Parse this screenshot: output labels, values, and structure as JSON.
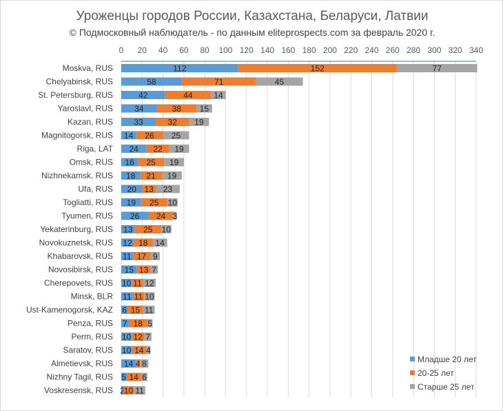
{
  "chart_data": {
    "type": "bar",
    "orientation": "horizontal",
    "stacked": true,
    "title": "Уроженцы городов России, Казахстана, Беларуси, Латвии",
    "subtitle": "© Подмосковный наблюдатель - по данным eliteprospects.com за февраль 2020 г.",
    "xlim": [
      0,
      340
    ],
    "xticks": [
      0,
      20,
      40,
      60,
      80,
      100,
      120,
      140,
      160,
      180,
      200,
      220,
      240,
      260,
      280,
      300,
      320,
      340
    ],
    "grid": true,
    "legend_position": "bottom-right",
    "categories": [
      "Moskva, RUS",
      "Chelyabinsk, RUS",
      "St. Petersburg, RUS",
      "Yaroslavl, RUS",
      "Kazan, RUS",
      "Magnitogorsk, RUS",
      "Riga, LAT",
      "Omsk, RUS",
      "Nizhnekamsk, RUS",
      "Ufa, RUS",
      "Togliatti, RUS",
      "Tyumen, RUS",
      "Yekaterinburg, RUS",
      "Novokuznetsk, RUS",
      "Khabarovsk, RUS",
      "Novosibirsk, RUS",
      "Cherepovets, RUS",
      "Minsk, BLR",
      "Ust-Kamenogorsk, KAZ",
      "Penza, RUS",
      "Perm, RUS",
      "Saratov, RUS",
      "Almetievsk, RUS",
      "Nizhny Tagil, RUS",
      "Voskresensk, RUS"
    ],
    "series": [
      {
        "name": "Младше 20 лет",
        "color": "#5b9bd5",
        "values": [
          112,
          58,
          42,
          34,
          33,
          14,
          24,
          16,
          18,
          20,
          19,
          26,
          13,
          12,
          11,
          15,
          10,
          11,
          6,
          7,
          10,
          10,
          14,
          5,
          2
        ]
      },
      {
        "name": "20-25 лет",
        "color": "#ed7d31",
        "values": [
          152,
          71,
          44,
          38,
          32,
          26,
          22,
          25,
          21,
          13,
          25,
          24,
          25,
          18,
          17,
          13,
          11,
          11,
          15,
          18,
          12,
          14,
          4,
          14,
          10
        ]
      },
      {
        "name": "Старше 25 лет",
        "color": "#a5a5a5",
        "values": [
          77,
          45,
          14,
          15,
          19,
          25,
          19,
          19,
          19,
          23,
          10,
          3,
          10,
          14,
          9,
          7,
          12,
          10,
          11,
          5,
          7,
          4,
          8,
          6,
          11
        ]
      }
    ]
  }
}
